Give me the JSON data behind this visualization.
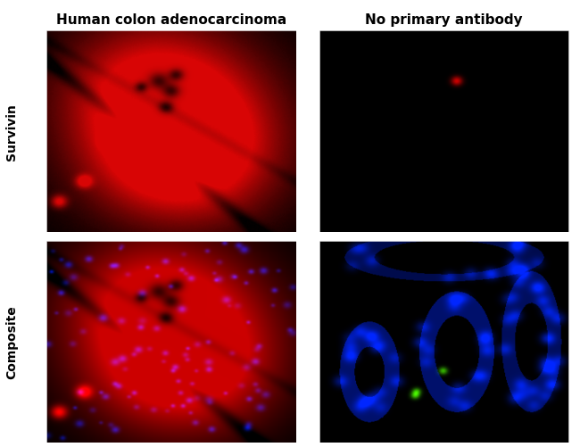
{
  "title_col1": "Human colon adenocarcinoma",
  "title_col2": "No primary antibody",
  "row_label1": "Survivin",
  "row_label2": "Composite",
  "background_color": "#ffffff",
  "title_fontsize": 11,
  "label_fontsize": 10,
  "fig_width": 6.5,
  "fig_height": 5.02,
  "dpi": 100
}
